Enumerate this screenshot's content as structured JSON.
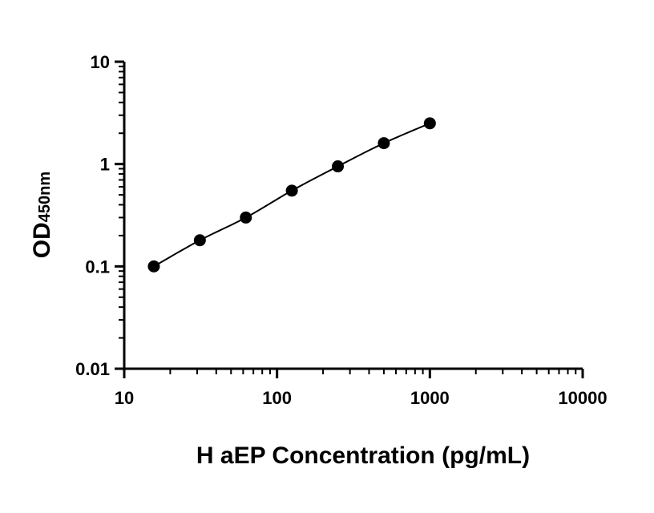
{
  "chart_data": {
    "type": "scatter",
    "xlabel": "H aEP Concentration (pg/mL)",
    "ylabel": {
      "main": "OD",
      "sub": "450nm"
    },
    "xscale": "log",
    "yscale": "log",
    "xlim": [
      10,
      10000
    ],
    "ylim": [
      0.01,
      10
    ],
    "x_ticks": [
      {
        "value": 10,
        "label": "10"
      },
      {
        "value": 100,
        "label": "100"
      },
      {
        "value": 1000,
        "label": "1000"
      },
      {
        "value": 10000,
        "label": "10000"
      }
    ],
    "y_ticks": [
      {
        "value": 0.01,
        "label": "0.01"
      },
      {
        "value": 0.1,
        "label": "0.1"
      },
      {
        "value": 1,
        "label": "1"
      },
      {
        "value": 10,
        "label": "10"
      }
    ],
    "grid": false,
    "legend": "none",
    "marker_color": "#000000",
    "curve_color": "#000000",
    "series": [
      {
        "x": [
          15.625,
          31.25,
          62.5,
          125,
          250,
          500,
          1000
        ],
        "y": [
          0.1,
          0.18,
          0.3,
          0.55,
          0.95,
          1.6,
          2.5
        ],
        "fit_line": true
      }
    ]
  }
}
